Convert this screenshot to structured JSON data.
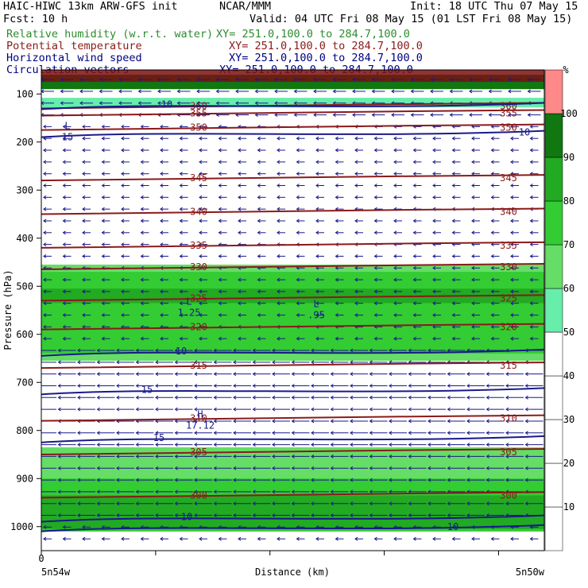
{
  "header": {
    "left_line1": "HAIC-HIWC 13km ARW-GFS init",
    "center_line1": "NCAR/MMM",
    "right_line1": "Init: 18 UTC Thu 07 May 15",
    "left_line2": "Fcst:   10 h",
    "right_line2": "Valid: 04 UTC Fri 08 May 15 (01 LST Fri 08 May 15)"
  },
  "fields": [
    {
      "label": "Relative humidity (w.r.t. water)",
      "xy": "XY= 251.0,100.0 to 284.7,100.0",
      "color": "#2e8b2e"
    },
    {
      "label": "Potential temperature",
      "xy": "XY= 251.0,100.0 to 284.7,100.0",
      "color": "#8b1a1a"
    },
    {
      "label": "Horizontal wind speed",
      "xy": "XY= 251.0,100.0 to 284.7,100.0",
      "color": "#000080"
    },
    {
      "label": "Circulation vectors",
      "xy": "XY= 251.0,100.0 to 284.7,100.0",
      "color": "#000080"
    }
  ],
  "chart_data": {
    "type": "heatmap",
    "ylabel": "Pressure (hPa)",
    "xlabel": "Distance (km)",
    "x_start_label": "0",
    "x_left_label": "5n54w",
    "x_right_label": "5n50w",
    "yticks": [
      100,
      200,
      300,
      400,
      500,
      600,
      700,
      800,
      900,
      1000
    ],
    "ylim": [
      1050,
      50
    ],
    "colorbar": {
      "unit": "%",
      "levels": [
        10,
        20,
        30,
        40,
        50,
        60,
        70,
        80,
        90,
        100
      ],
      "colors": [
        "#ffffff",
        "#ffffff",
        "#ffffff",
        "#ffffff",
        "#ffffff",
        "#66eeaa",
        "#66dd66",
        "#33cc33",
        "#22aa22",
        "#117711",
        "#ff8888"
      ]
    },
    "rh_bands": [
      {
        "p_top": 455,
        "p_bot": 655,
        "rh": 60
      },
      {
        "p_top": 470,
        "p_bot": 640,
        "rh": 72
      },
      {
        "p_top": 505,
        "p_bot": 535,
        "rh": 85
      },
      {
        "p_top": 835,
        "p_bot": 1010,
        "rh": 60
      },
      {
        "p_top": 900,
        "p_bot": 1010,
        "rh": 75
      },
      {
        "p_top": 935,
        "p_bot": 1005,
        "rh": 88
      },
      {
        "p_top": 60,
        "p_bot": 90,
        "rh": 95
      },
      {
        "p_top": 108,
        "p_bot": 128,
        "rh": 55
      }
    ],
    "theta_labels": [
      {
        "value": "350",
        "p": 170
      },
      {
        "value": "345",
        "p": 275
      },
      {
        "value": "340",
        "p": 345
      },
      {
        "value": "335",
        "p": 415
      },
      {
        "value": "330",
        "p": 460
      },
      {
        "value": "325",
        "p": 525
      },
      {
        "value": "320",
        "p": 585
      },
      {
        "value": "315",
        "p": 665
      },
      {
        "value": "310",
        "p": 775
      },
      {
        "value": "305",
        "p": 845
      },
      {
        "value": "300",
        "p": 935
      },
      {
        "value": "355",
        "p": 140
      },
      {
        "value": "360",
        "p": 125
      }
    ],
    "wind_labels": [
      {
        "value": "10",
        "p": 635
      },
      {
        "value": "15",
        "p": 715
      },
      {
        "value": "15",
        "p": 815
      },
      {
        "value": "10",
        "p": 980
      },
      {
        "value": "10",
        "p": 1000
      },
      {
        "value": "10",
        "p": 180
      },
      {
        "value": "10",
        "p": 122
      }
    ],
    "extrema": [
      {
        "type": "L",
        "value": "15",
        "p": 180
      },
      {
        "type": "L",
        "value": "1.25",
        "p": 545
      },
      {
        "type": "L",
        "value": ".95",
        "p": 550
      },
      {
        "type": "H",
        "value": "17.12",
        "p": 780
      }
    ]
  }
}
